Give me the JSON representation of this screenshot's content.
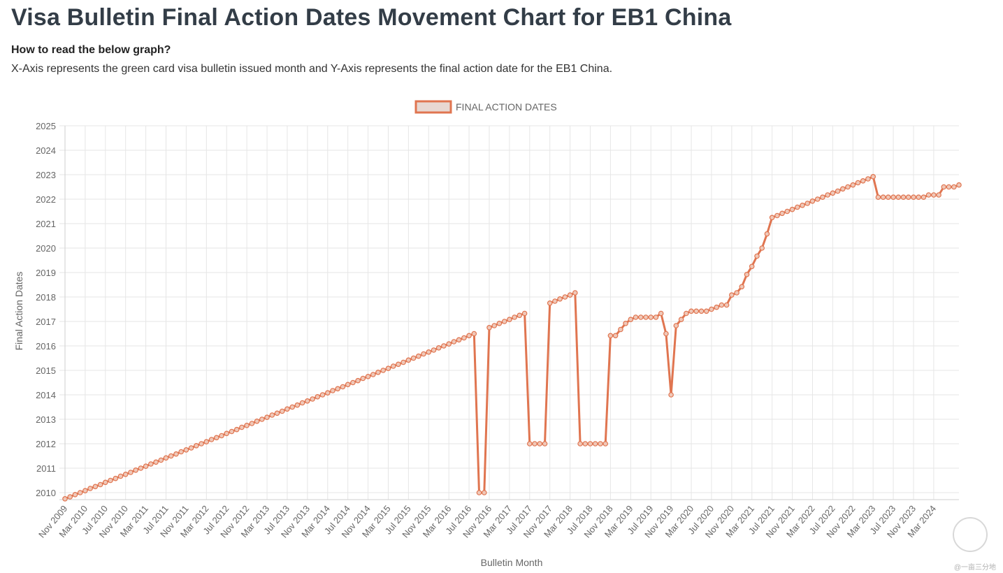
{
  "page": {
    "title": "Visa Bulletin Final Action Dates Movement Chart for EB1 China",
    "read_heading": "How to read the below graph?",
    "read_desc": "X-Axis represents the green card visa bulletin issued month and Y-Axis represents the final action date for the EB1 China.",
    "watermark": "@一亩三分地"
  },
  "colors": {
    "line": "#e07550",
    "point_fill": "#f0c8b8",
    "grid": "#e6e6e6",
    "tick": "#666666"
  },
  "chart_data": {
    "type": "line",
    "legend_position": "top-center",
    "grid": true,
    "xlabel": "Bulletin Month",
    "ylabel": "Final Action Dates",
    "ylim": [
      2010,
      2025
    ],
    "yticks": [
      2010,
      2011,
      2012,
      2013,
      2014,
      2015,
      2016,
      2017,
      2018,
      2019,
      2020,
      2021,
      2022,
      2023,
      2024,
      2025
    ],
    "xtick_labels": [
      "Nov 2009",
      "Mar 2010",
      "Jul 2010",
      "Nov 2010",
      "Mar 2011",
      "Jul 2011",
      "Nov 2011",
      "Mar 2012",
      "Jul 2012",
      "Nov 2012",
      "Mar 2013",
      "Jul 2013",
      "Nov 2013",
      "Mar 2014",
      "Jul 2014",
      "Nov 2014",
      "Mar 2015",
      "Jul 2015",
      "Nov 2015",
      "Mar 2016",
      "Jul 2016",
      "Nov 2016",
      "Mar 2017",
      "Jul 2017",
      "Nov 2017",
      "Mar 2018",
      "Jul 2018",
      "Nov 2018",
      "Mar 2019",
      "Jul 2019",
      "Nov 2019",
      "Mar 2020",
      "Jul 2020",
      "Nov 2020",
      "Mar 2021",
      "Jul 2021",
      "Nov 2021",
      "Mar 2022",
      "Jul 2022",
      "Nov 2022",
      "Mar 2023",
      "Jul 2023",
      "Nov 2023",
      "Mar 2024"
    ],
    "series": [
      {
        "name": "FINAL ACTION DATES",
        "x_start": "Nov 2009",
        "x_step": "1 month",
        "values": [
          2009.75,
          2009.83,
          2009.92,
          2010.0,
          2010.08,
          2010.17,
          2010.25,
          2010.33,
          2010.42,
          2010.5,
          2010.58,
          2010.67,
          2010.75,
          2010.83,
          2010.92,
          2011.0,
          2011.08,
          2011.17,
          2011.25,
          2011.33,
          2011.42,
          2011.5,
          2011.58,
          2011.67,
          2011.75,
          2011.83,
          2011.92,
          2012.0,
          2012.08,
          2012.17,
          2012.25,
          2012.33,
          2012.42,
          2012.5,
          2012.58,
          2012.67,
          2012.75,
          2012.83,
          2012.92,
          2013.0,
          2013.08,
          2013.17,
          2013.25,
          2013.33,
          2013.42,
          2013.5,
          2013.58,
          2013.67,
          2013.75,
          2013.83,
          2013.92,
          2014.0,
          2014.08,
          2014.17,
          2014.25,
          2014.33,
          2014.42,
          2014.5,
          2014.58,
          2014.67,
          2014.75,
          2014.83,
          2014.92,
          2015.0,
          2015.08,
          2015.17,
          2015.25,
          2015.33,
          2015.42,
          2015.5,
          2015.58,
          2015.67,
          2015.75,
          2015.83,
          2015.92,
          2016.0,
          2016.08,
          2016.17,
          2016.25,
          2016.33,
          2016.42,
          2016.5,
          2010.0,
          2010.0,
          2016.75,
          2016.83,
          2016.92,
          2017.0,
          2017.08,
          2017.17,
          2017.25,
          2017.33,
          2012.0,
          2012.0,
          2012.0,
          2012.0,
          2017.75,
          2017.83,
          2017.92,
          2018.0,
          2018.08,
          2018.17,
          2012.0,
          2012.0,
          2012.0,
          2012.0,
          2012.0,
          2012.0,
          2016.42,
          2016.42,
          2016.67,
          2016.92,
          2017.08,
          2017.17,
          2017.17,
          2017.17,
          2017.17,
          2017.17,
          2017.33,
          2016.5,
          2014.0,
          2016.83,
          2017.08,
          2017.33,
          2017.42,
          2017.42,
          2017.42,
          2017.42,
          2017.5,
          2017.58,
          2017.67,
          2017.67,
          2018.08,
          2018.17,
          2018.42,
          2018.92,
          2019.25,
          2019.67,
          2020.0,
          2020.58,
          2021.25,
          2021.33,
          2021.42,
          2021.5,
          2021.58,
          2021.67,
          2021.75,
          2021.83,
          2021.92,
          2022.0,
          2022.08,
          2022.17,
          2022.25,
          2022.33,
          2022.42,
          2022.5,
          2022.58,
          2022.67,
          2022.75,
          2022.83,
          2022.92,
          2022.08,
          2022.08,
          2022.08,
          2022.08,
          2022.08,
          2022.08,
          2022.08,
          2022.08,
          2022.08,
          2022.08,
          2022.17,
          2022.17,
          2022.17,
          2022.5,
          2022.5,
          2022.5,
          2022.58
        ]
      }
    ]
  }
}
